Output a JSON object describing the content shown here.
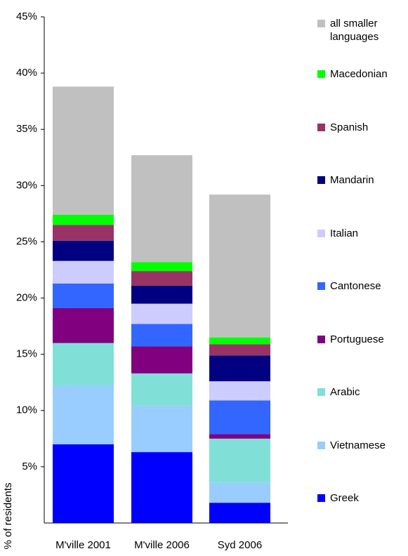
{
  "chart_data": {
    "type": "stacked_bar",
    "y_label": "% of residents",
    "categories": [
      "M'ville 2001",
      "M'ville 2006",
      "Syd 2006"
    ],
    "series": [
      {
        "name": "Greek",
        "color": "#0000ff",
        "values": [
          7.0,
          6.3,
          1.8
        ]
      },
      {
        "name": "Vietnamese",
        "color": "#99ccff",
        "values": [
          5.2,
          4.1,
          1.8
        ]
      },
      {
        "name": "Arabic",
        "color": "#80e0d8",
        "values": [
          3.8,
          2.9,
          3.9
        ]
      },
      {
        "name": "Portuguese",
        "color": "#800080",
        "values": [
          3.1,
          2.4,
          0.4
        ]
      },
      {
        "name": "Cantonese",
        "color": "#3366ff",
        "values": [
          2.2,
          2.0,
          3.0
        ]
      },
      {
        "name": "Italian",
        "color": "#ccccff",
        "values": [
          2.0,
          1.8,
          1.7
        ]
      },
      {
        "name": "Mandarin",
        "color": "#000080",
        "values": [
          1.8,
          1.6,
          2.3
        ]
      },
      {
        "name": "Spanish",
        "color": "#993366",
        "values": [
          1.4,
          1.3,
          1.0
        ]
      },
      {
        "name": "Macedonian",
        "color": "#00ff00",
        "values": [
          0.9,
          0.8,
          0.6
        ]
      },
      {
        "name": "all smaller languages",
        "color": "#c0c0c0",
        "values": [
          11.4,
          9.5,
          12.7
        ]
      }
    ],
    "ylim": [
      0,
      45
    ],
    "yticks": [
      {
        "value": 5,
        "label": "5%"
      },
      {
        "value": 10,
        "label": "10%"
      },
      {
        "value": 15,
        "label": "15%"
      },
      {
        "value": 20,
        "label": "20%"
      },
      {
        "value": 25,
        "label": "25%"
      },
      {
        "value": 30,
        "label": "30%"
      },
      {
        "value": 35,
        "label": "35%"
      },
      {
        "value": 40,
        "label": "40%"
      },
      {
        "value": 45,
        "label": "45%"
      }
    ],
    "legend": "right"
  }
}
